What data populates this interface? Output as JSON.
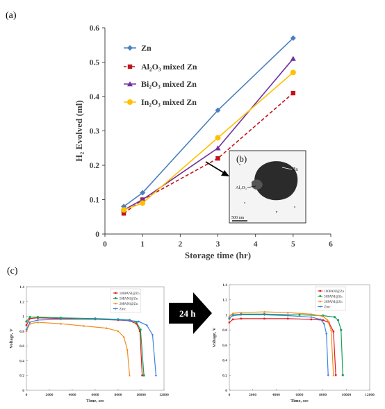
{
  "panel_labels": {
    "a": "(a)",
    "b": "(b)",
    "c": "(c)"
  },
  "arrow_label": "24 h",
  "inset": {
    "label_zn": "Zn",
    "label_al2o3": "Al₂O₃",
    "scalebar": "500 nm"
  },
  "chart_data": [
    {
      "type": "line",
      "xlabel": "Storage time (hr)",
      "ylabel": "H₂ Evolved (ml)",
      "xlim": [
        0,
        6
      ],
      "ylim": [
        0,
        0.6
      ],
      "xticks": [
        "0",
        "1",
        "2",
        "3",
        "4",
        "5",
        "6"
      ],
      "yticks": [
        "0",
        "0.1",
        "0.2",
        "0.3",
        "0.4",
        "0.5",
        "0.6"
      ],
      "legend_position": "top-left",
      "series": [
        {
          "name": "Zn",
          "x": [
            0.5,
            1,
            3,
            5
          ],
          "y": [
            0.08,
            0.12,
            0.36,
            0.57
          ],
          "color": "#4a7fc1",
          "marker": "diamond",
          "dash": false
        },
        {
          "name": "Al₂O₃ mixed Zn",
          "x": [
            0.5,
            1,
            3,
            5
          ],
          "y": [
            0.06,
            0.1,
            0.22,
            0.41
          ],
          "color": "#c0141c",
          "marker": "square",
          "dash": true
        },
        {
          "name": "Bi₂O₃ mixed Zn",
          "x": [
            0.5,
            1,
            3,
            5
          ],
          "y": [
            0.07,
            0.1,
            0.25,
            0.51
          ],
          "color": "#7030a0",
          "marker": "triangle",
          "dash": false
        },
        {
          "name": "In₂O₃ mixed Zn",
          "x": [
            0.5,
            1,
            3,
            5
          ],
          "y": [
            0.07,
            0.09,
            0.28,
            0.47
          ],
          "color": "#ffc000",
          "marker": "circle",
          "dash": false
        }
      ]
    },
    {
      "type": "line",
      "xlabel": "Time, sec",
      "ylabel": "Voltage, V",
      "xlim": [
        0,
        12000
      ],
      "ylim": [
        0,
        1.4
      ],
      "xticks": [
        "0",
        "2000",
        "4000",
        "6000",
        "8000",
        "10000",
        "12000"
      ],
      "yticks": [
        "0",
        "0.2",
        "0.4",
        "0.6",
        "0.8",
        "1",
        "1.2",
        "1.4"
      ],
      "legend_position": "top-right",
      "series": [
        {
          "name": "100PANI@Zn",
          "color": "#e41a1c",
          "x": [
            0,
            300,
            1000,
            3000,
            6000,
            8000,
            9000,
            9600,
            9900,
            10100
          ],
          "y": [
            0.88,
            0.97,
            0.98,
            0.97,
            0.96,
            0.95,
            0.94,
            0.9,
            0.8,
            0.2
          ]
        },
        {
          "name": "50PANI@Zn",
          "color": "#18a058",
          "x": [
            0,
            300,
            1000,
            3000,
            6000,
            8000,
            9000,
            9600,
            9950,
            10250
          ],
          "y": [
            0.93,
            0.99,
            0.99,
            0.98,
            0.97,
            0.96,
            0.95,
            0.92,
            0.82,
            0.2
          ]
        },
        {
          "name": "20PANI@Zn",
          "color": "#f28c1e",
          "x": [
            0,
            300,
            1000,
            3000,
            5000,
            7000,
            8000,
            8500,
            8800,
            9000
          ],
          "y": [
            0.8,
            0.9,
            0.92,
            0.9,
            0.87,
            0.84,
            0.8,
            0.72,
            0.55,
            0.2
          ]
        },
        {
          "name": "Zinc",
          "color": "#3b83e0",
          "x": [
            0,
            300,
            1000,
            3000,
            6000,
            8500,
            9800,
            10500,
            11000,
            11300
          ],
          "y": [
            0.82,
            0.92,
            0.95,
            0.96,
            0.96,
            0.95,
            0.93,
            0.88,
            0.75,
            0.2
          ]
        }
      ]
    },
    {
      "type": "line",
      "xlabel": "Time, sec",
      "ylabel": "Voltage, V",
      "xlim": [
        0,
        12000
      ],
      "ylim": [
        0,
        1.4
      ],
      "xticks": [
        "0",
        "2000",
        "4000",
        "6000",
        "8000",
        "10000",
        "12000"
      ],
      "yticks": [
        "0",
        "0.2",
        "0.4",
        "0.6",
        "0.8",
        "1",
        "1.2",
        "1.4"
      ],
      "legend_position": "top-right",
      "series": [
        {
          "name": "100PANI@Zn",
          "color": "#e41a1c",
          "x": [
            0,
            300,
            1000,
            3000,
            5000,
            7000,
            8000,
            8500,
            8900,
            9100
          ],
          "y": [
            0.9,
            0.94,
            0.95,
            0.95,
            0.95,
            0.94,
            0.93,
            0.9,
            0.78,
            0.2
          ]
        },
        {
          "name": "50PANI@Zn",
          "color": "#18a058",
          "x": [
            0,
            300,
            1000,
            3000,
            6000,
            8000,
            9000,
            9300,
            9550,
            9700
          ],
          "y": [
            0.95,
            1.0,
            1.01,
            1.01,
            1.0,
            0.99,
            0.97,
            0.93,
            0.8,
            0.2
          ]
        },
        {
          "name": "20PANI@Zn",
          "color": "#f28c1e",
          "x": [
            0,
            300,
            1000,
            3000,
            5000,
            7000,
            8000,
            8400,
            8700,
            8900
          ],
          "y": [
            0.98,
            1.02,
            1.03,
            1.04,
            1.03,
            1.01,
            0.98,
            0.93,
            0.8,
            0.2
          ]
        },
        {
          "name": "Zinc",
          "color": "#3b83e0",
          "x": [
            0,
            300,
            1000,
            3000,
            5000,
            7000,
            7800,
            8100,
            8300,
            8450
          ],
          "y": [
            0.96,
            0.99,
            1.0,
            1.0,
            0.99,
            0.97,
            0.94,
            0.88,
            0.75,
            0.2
          ]
        }
      ]
    }
  ]
}
